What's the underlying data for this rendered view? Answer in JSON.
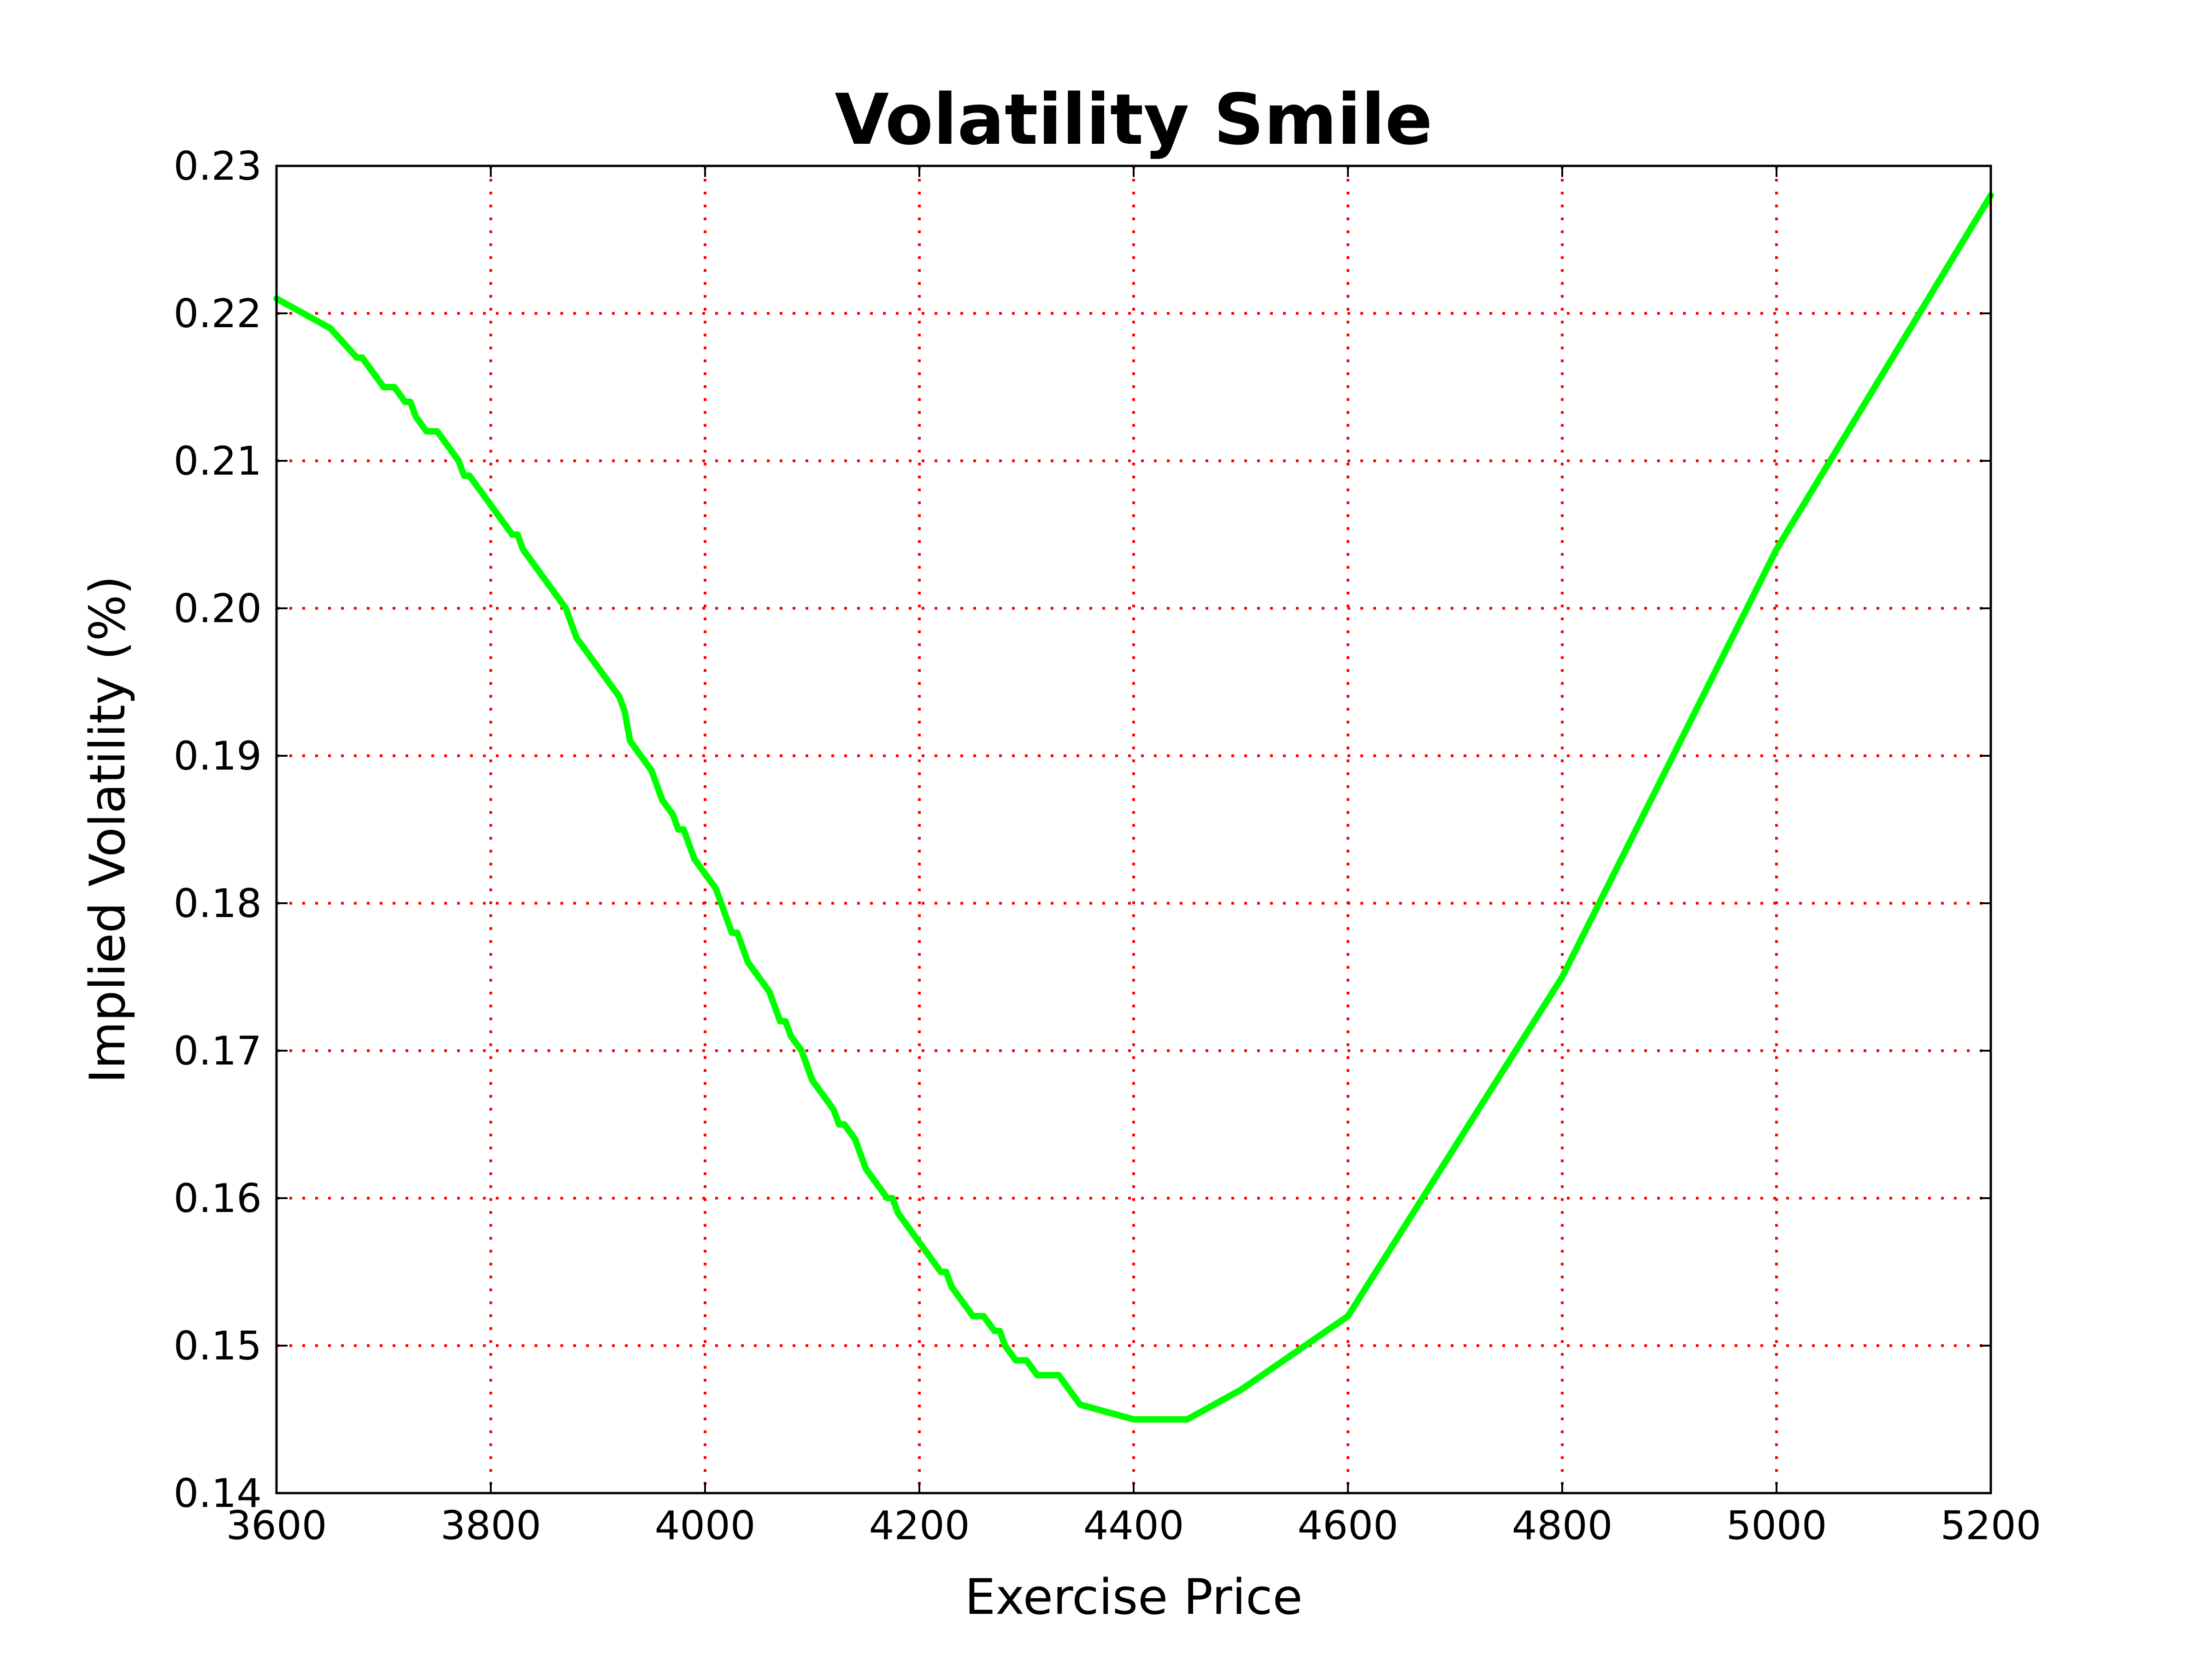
{
  "chart_data": {
    "type": "line",
    "title": "Volatility Smile",
    "xlabel": "Exercise Price",
    "ylabel": "Implied Volatility (%)",
    "xlim": [
      3600,
      5200
    ],
    "ylim": [
      0.14,
      0.23
    ],
    "x_ticks": [
      3600,
      3800,
      4000,
      4200,
      4400,
      4600,
      4800,
      5000,
      5200
    ],
    "y_ticks": [
      0.14,
      0.15,
      0.16,
      0.17,
      0.18,
      0.19,
      0.2,
      0.21,
      0.22,
      0.23
    ],
    "x_tick_labels": [
      "3600",
      "3800",
      "4000",
      "4200",
      "4400",
      "4600",
      "4800",
      "5000",
      "5200"
    ],
    "y_tick_labels": [
      "0.14",
      "0.15",
      "0.16",
      "0.17",
      "0.18",
      "0.19",
      "0.20",
      "0.21",
      "0.22",
      "0.23"
    ],
    "grid": true,
    "grid_color": "#ff0000",
    "series": [
      {
        "color": "#00ff00",
        "x": [
          3600,
          3650,
          3675,
          3680,
          3700,
          3710,
          3720,
          3725,
          3730,
          3740,
          3750,
          3760,
          3770,
          3775,
          3780,
          3800,
          3820,
          3825,
          3830,
          3850,
          3870,
          3875,
          3880,
          3900,
          3920,
          3925,
          3930,
          3950,
          3960,
          3970,
          3975,
          3980,
          3990,
          4000,
          4010,
          4020,
          4025,
          4030,
          4040,
          4050,
          4060,
          4070,
          4075,
          4080,
          4090,
          4100,
          4110,
          4120,
          4125,
          4130,
          4140,
          4150,
          4160,
          4170,
          4175,
          4180,
          4200,
          4220,
          4225,
          4230,
          4240,
          4250,
          4260,
          4270,
          4275,
          4280,
          4290,
          4300,
          4310,
          4320,
          4330,
          4350,
          4400,
          4450,
          4500,
          4550,
          4600,
          4700,
          4800,
          5000,
          5200
        ],
        "y": [
          0.221,
          0.219,
          0.217,
          0.217,
          0.215,
          0.215,
          0.214,
          0.214,
          0.213,
          0.212,
          0.212,
          0.211,
          0.21,
          0.209,
          0.209,
          0.207,
          0.205,
          0.205,
          0.204,
          0.202,
          0.2,
          0.199,
          0.198,
          0.196,
          0.194,
          0.193,
          0.191,
          0.189,
          0.187,
          0.186,
          0.185,
          0.185,
          0.183,
          0.182,
          0.181,
          0.179,
          0.178,
          0.178,
          0.176,
          0.175,
          0.174,
          0.172,
          0.172,
          0.171,
          0.17,
          0.168,
          0.167,
          0.166,
          0.165,
          0.165,
          0.164,
          0.162,
          0.161,
          0.16,
          0.16,
          0.159,
          0.157,
          0.155,
          0.155,
          0.154,
          0.153,
          0.152,
          0.152,
          0.151,
          0.151,
          0.15,
          0.149,
          0.149,
          0.148,
          0.148,
          0.148,
          0.146,
          0.145,
          0.145,
          0.147,
          0.1495,
          0.152,
          0.1635,
          0.175,
          0.204,
          0.228
        ]
      }
    ]
  }
}
